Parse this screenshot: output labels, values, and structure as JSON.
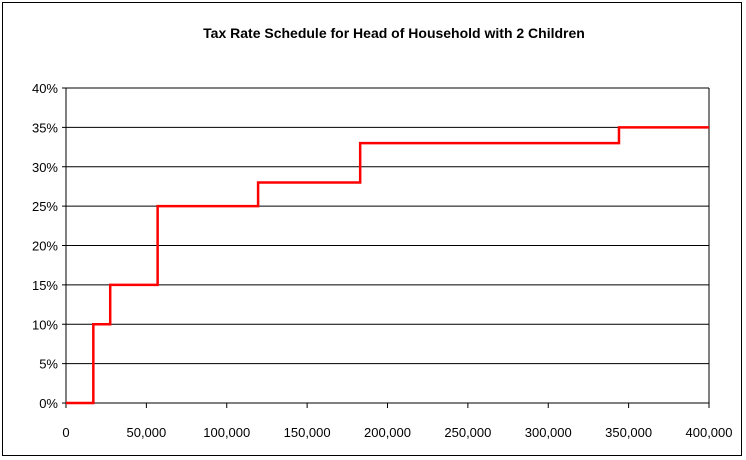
{
  "chart_data": {
    "type": "line",
    "step": true,
    "title": "Tax Rate Schedule for Head of Household with 2 Children",
    "xlabel": "",
    "ylabel": "",
    "xlim": [
      0,
      400000
    ],
    "ylim": [
      0,
      40
    ],
    "x_ticks": [
      0,
      50000,
      100000,
      150000,
      200000,
      250000,
      300000,
      350000,
      400000
    ],
    "x_tick_labels": [
      "0",
      "50,000",
      "100,000",
      "150,000",
      "200,000",
      "250,000",
      "300,000",
      "350,000",
      "400,000"
    ],
    "y_ticks": [
      0,
      5,
      10,
      15,
      20,
      25,
      30,
      35,
      40
    ],
    "y_tick_labels": [
      "0%",
      "5%",
      "10%",
      "15%",
      "20%",
      "25%",
      "30%",
      "35%",
      "40%"
    ],
    "grid": "horizontal",
    "legend": "none",
    "series": [
      {
        "color": "#ff0000",
        "x": [
          0,
          17000,
          27500,
          57000,
          119500,
          183000,
          344000,
          400000
        ],
        "y": [
          0,
          10,
          15,
          25,
          28,
          33,
          35,
          35
        ]
      }
    ]
  }
}
